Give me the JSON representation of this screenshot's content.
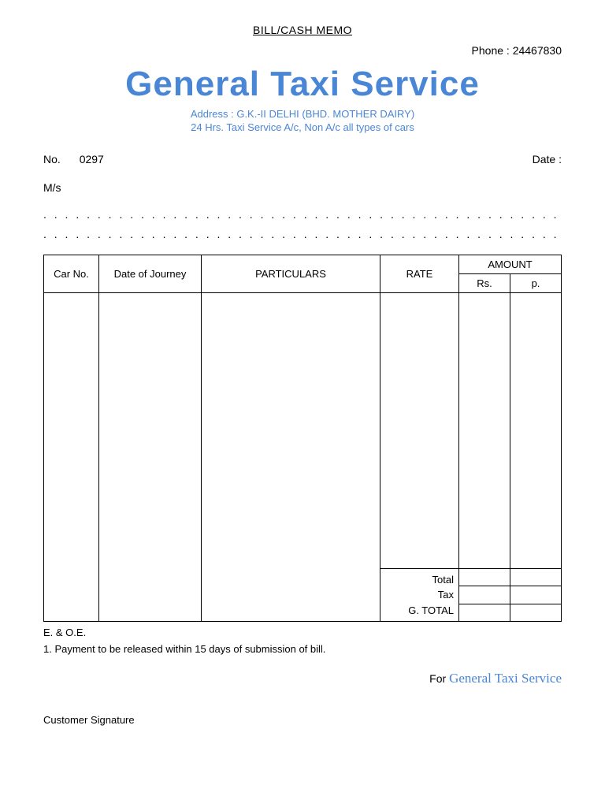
{
  "header": {
    "title": "BILL/CASH MEMO",
    "phone_label": "Phone :",
    "phone_value": "24467830",
    "company_name": "General Taxi Service",
    "address": "Address : G.K.-II DELHI (BHD. MOTHER DAIRY)",
    "tagline": "24 Hrs. Taxi Service A/c, Non A/c all types of cars"
  },
  "meta": {
    "no_label": "No.",
    "no_value": "0297",
    "date_label": "Date :",
    "ms_label": "M/s"
  },
  "table": {
    "columns": {
      "car_no": "Car No.",
      "date": "Date of Journey",
      "particulars": "PARTICULARS",
      "rate": "RATE",
      "amount": "AMOUNT",
      "rs": "Rs.",
      "p": "p."
    },
    "summary": {
      "total": "Total",
      "tax": "Tax",
      "gtotal": "G. TOTAL"
    }
  },
  "footer": {
    "eoe": "E. & O.E.",
    "note": "1. Payment to be released within 15 days of submission of bill.",
    "for_label": "For",
    "for_company": "General Taxi Service",
    "cust_sig": "Customer Signature"
  },
  "style": {
    "accent_color": "#4a86d6",
    "text_color": "#000000",
    "bg_color": "#ffffff",
    "title_fontsize": 44
  }
}
